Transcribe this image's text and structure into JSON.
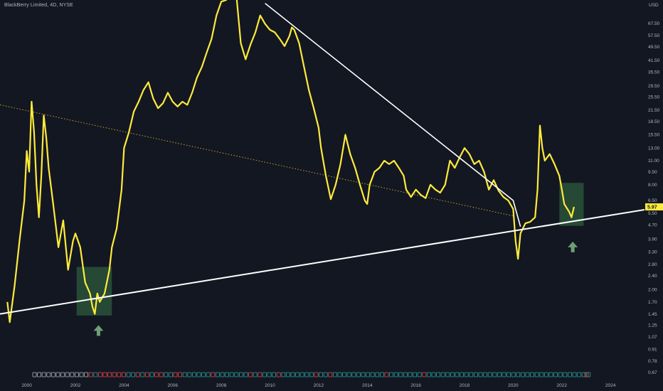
{
  "header": {
    "title": "BlackBerry Limited, 4D, NYSE"
  },
  "price_badge": {
    "value": "5.97",
    "bg": "#ffeb3b"
  },
  "colors": {
    "bg": "#131722",
    "price": "#ffeb3b",
    "trendline": "#ffffff",
    "dotted": "#c9a227",
    "box": "#2e5b3c",
    "arrow": "#6e9e74",
    "axis_text": "#b2b5be"
  },
  "chart_data": {
    "type": "line",
    "title": "BlackBerry Limited, 4D, NYSE",
    "y_scale": "log",
    "y_unit": "USD",
    "y_ticks": [
      "67.50",
      "57.50",
      "49.50",
      "41.50",
      "35.50",
      "29.50",
      "25.50",
      "21.50",
      "18.50",
      "15.50",
      "13.00",
      "11.00",
      "9.50",
      "8.00",
      "6.50",
      "5.50",
      "4.70",
      "3.90",
      "3.30",
      "2.80",
      "2.40",
      "2.00",
      "1.70",
      "1.45",
      "1.25",
      "1.07",
      "0.91",
      "0.78",
      "0.67"
    ],
    "x_ticks": [
      "2000",
      "2002",
      "2004",
      "2006",
      "2008",
      "2010",
      "2012",
      "2014",
      "2016",
      "2018",
      "2020",
      "2022",
      "2024"
    ],
    "x_range": [
      1998.9,
      2025.4
    ],
    "y_range": [
      0.62,
      92
    ],
    "series": [
      {
        "values": [
          [
            1999.2,
            1.7
          ],
          [
            1999.3,
            1.3
          ],
          [
            1999.5,
            2.1
          ],
          [
            1999.7,
            3.8
          ],
          [
            1999.9,
            6.5
          ],
          [
            2000.0,
            12.5
          ],
          [
            2000.1,
            9.5
          ],
          [
            2000.2,
            24
          ],
          [
            2000.3,
            16
          ],
          [
            2000.4,
            8
          ],
          [
            2000.5,
            5.2
          ],
          [
            2000.6,
            9
          ],
          [
            2000.7,
            20
          ],
          [
            2000.8,
            15
          ],
          [
            2000.9,
            10
          ],
          [
            2001.1,
            6
          ],
          [
            2001.3,
            3.5
          ],
          [
            2001.5,
            5
          ],
          [
            2001.7,
            2.6
          ],
          [
            2001.9,
            3.8
          ],
          [
            2002.0,
            4.2
          ],
          [
            2002.2,
            3.5
          ],
          [
            2002.4,
            2.2
          ],
          [
            2002.6,
            1.9
          ],
          [
            2002.7,
            1.6
          ],
          [
            2002.8,
            1.45
          ],
          [
            2002.9,
            1.9
          ],
          [
            2003.0,
            1.7
          ],
          [
            2003.2,
            1.9
          ],
          [
            2003.4,
            2.6
          ],
          [
            2003.5,
            3.5
          ],
          [
            2003.7,
            4.5
          ],
          [
            2003.9,
            7.5
          ],
          [
            2004.0,
            13
          ],
          [
            2004.2,
            16
          ],
          [
            2004.4,
            21
          ],
          [
            2004.6,
            24
          ],
          [
            2004.8,
            28
          ],
          [
            2005.0,
            31
          ],
          [
            2005.2,
            25
          ],
          [
            2005.4,
            22
          ],
          [
            2005.6,
            23.5
          ],
          [
            2005.8,
            27
          ],
          [
            2006.0,
            24
          ],
          [
            2006.2,
            22.5
          ],
          [
            2006.4,
            24
          ],
          [
            2006.6,
            23
          ],
          [
            2006.8,
            27
          ],
          [
            2007.0,
            33
          ],
          [
            2007.2,
            38
          ],
          [
            2007.4,
            46
          ],
          [
            2007.6,
            55
          ],
          [
            2007.8,
            75
          ],
          [
            2008.0,
            90
          ],
          [
            2008.2,
            92
          ],
          [
            2008.4,
            110
          ],
          [
            2008.6,
            105
          ],
          [
            2008.8,
            52
          ],
          [
            2009.0,
            42
          ],
          [
            2009.2,
            51
          ],
          [
            2009.4,
            60
          ],
          [
            2009.6,
            75
          ],
          [
            2009.8,
            67
          ],
          [
            2010.0,
            62
          ],
          [
            2010.2,
            60
          ],
          [
            2010.4,
            55
          ],
          [
            2010.6,
            50
          ],
          [
            2010.8,
            57
          ],
          [
            2010.9,
            64
          ],
          [
            2011.0,
            62
          ],
          [
            2011.2,
            52
          ],
          [
            2011.4,
            38
          ],
          [
            2011.6,
            28
          ],
          [
            2011.8,
            22
          ],
          [
            2012.0,
            17
          ],
          [
            2012.1,
            13
          ],
          [
            2012.3,
            9
          ],
          [
            2012.5,
            6.6
          ],
          [
            2012.7,
            8
          ],
          [
            2012.9,
            10.5
          ],
          [
            2013.1,
            15.5
          ],
          [
            2013.3,
            12
          ],
          [
            2013.5,
            10
          ],
          [
            2013.7,
            8
          ],
          [
            2013.9,
            6.5
          ],
          [
            2014.0,
            6.2
          ],
          [
            2014.1,
            8
          ],
          [
            2014.3,
            9.5
          ],
          [
            2014.5,
            10
          ],
          [
            2014.7,
            11
          ],
          [
            2014.9,
            10.5
          ],
          [
            2015.1,
            11
          ],
          [
            2015.3,
            10
          ],
          [
            2015.5,
            9
          ],
          [
            2015.6,
            7.5
          ],
          [
            2015.8,
            6.8
          ],
          [
            2016.0,
            7.5
          ],
          [
            2016.2,
            7
          ],
          [
            2016.4,
            6.7
          ],
          [
            2016.6,
            8
          ],
          [
            2016.8,
            7.5
          ],
          [
            2017.0,
            7.2
          ],
          [
            2017.2,
            8
          ],
          [
            2017.4,
            11
          ],
          [
            2017.6,
            10
          ],
          [
            2017.8,
            11.5
          ],
          [
            2018.0,
            13
          ],
          [
            2018.2,
            12
          ],
          [
            2018.4,
            10.5
          ],
          [
            2018.6,
            11
          ],
          [
            2018.8,
            9.5
          ],
          [
            2019.0,
            7.5
          ],
          [
            2019.2,
            8.5
          ],
          [
            2019.4,
            7.4
          ],
          [
            2019.6,
            6.8
          ],
          [
            2019.8,
            6.5
          ],
          [
            2020.0,
            5.8
          ],
          [
            2020.1,
            3.8
          ],
          [
            2020.2,
            3
          ],
          [
            2020.3,
            4.2
          ],
          [
            2020.5,
            4.8
          ],
          [
            2020.7,
            4.9
          ],
          [
            2020.9,
            5.2
          ],
          [
            2021.0,
            7.5
          ],
          [
            2021.1,
            17.5
          ],
          [
            2021.2,
            13
          ],
          [
            2021.3,
            11
          ],
          [
            2021.5,
            12
          ],
          [
            2021.7,
            10.5
          ],
          [
            2021.9,
            9
          ],
          [
            2022.0,
            7.5
          ],
          [
            2022.1,
            6.2
          ],
          [
            2022.3,
            5.6
          ],
          [
            2022.4,
            5.2
          ],
          [
            2022.5,
            5.97
          ]
        ]
      }
    ],
    "annotations": {
      "rising_trendline": [
        [
          1998.9,
          1.45
        ],
        [
          2025.4,
          5.75
        ]
      ],
      "falling_trendline": [
        [
          2009.8,
          88
        ],
        [
          2020.0,
          6.5
        ],
        [
          2020.3,
          4.6
        ]
      ],
      "dotted_trendline": [
        [
          1998.9,
          23
        ],
        [
          2020.0,
          5.3
        ]
      ],
      "highlight_boxes": [
        {
          "x": [
            2002.05,
            2003.5
          ],
          "y": [
            1.42,
            2.7
          ]
        },
        {
          "x": [
            2021.9,
            2022.9
          ],
          "y": [
            4.65,
            8.2
          ]
        }
      ],
      "arrows": [
        {
          "x": 2002.95,
          "y": 1.16
        },
        {
          "x": 2022.45,
          "y": 3.5
        }
      ]
    }
  }
}
